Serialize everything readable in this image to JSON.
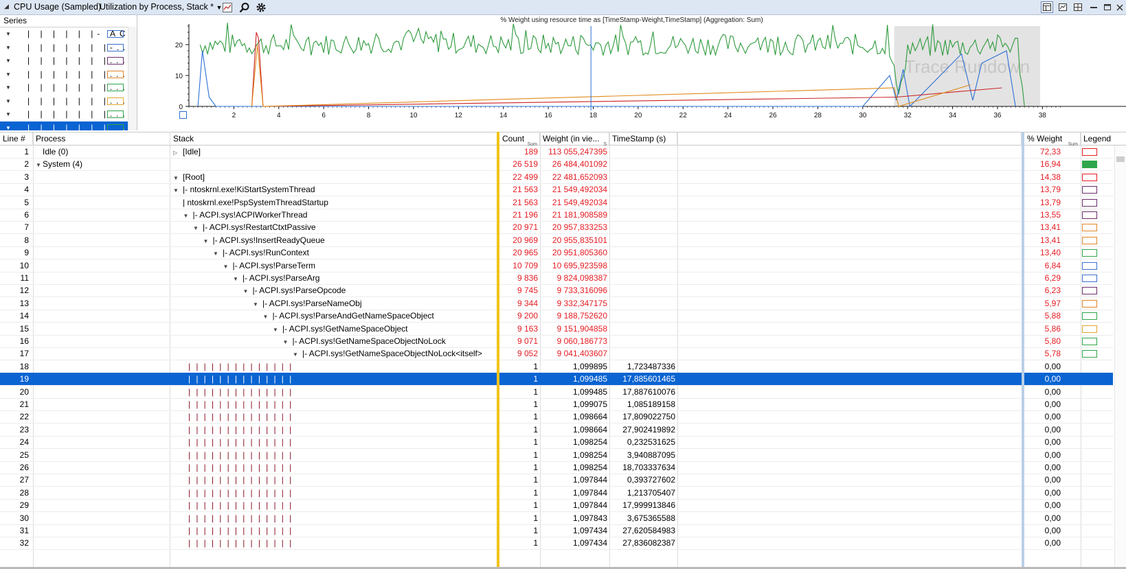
{
  "titlebar": {
    "graph_title": "CPU Usage (Sampled)",
    "preset": "Utilization by Process, Stack *",
    "icons": [
      "collapse-triangle-icon",
      "dropdown-arrow-icon",
      "graph-settings-icon",
      "search-icon",
      "gear-icon",
      "table-icon",
      "chart-icon",
      "split-icon",
      "minimize-icon",
      "restore-icon",
      "close-icon"
    ]
  },
  "series": {
    "header": "Series",
    "rows": [
      {
        "bars": "| | | | | |- AC...",
        "color": "#3a6fcf"
      },
      {
        "bars": "| | | | | | |-...",
        "color": "#3a6fcf"
      },
      {
        "bars": "| | | | | | |...",
        "color": "#6b2d6b"
      },
      {
        "bars": "| | | | | | |...",
        "color": "#e0862a"
      },
      {
        "bars": "| | | | | | |...",
        "color": "#2fa64b"
      },
      {
        "bars": "| | | | | | |...",
        "color": "#e0a52a"
      },
      {
        "bars": "| | | | | | |...",
        "color": "#2fa64b"
      },
      {
        "bars": "| | | | | | |...",
        "color": "#2fa64b",
        "selected": true
      }
    ]
  },
  "chart_data": {
    "type": "line",
    "title": "% Weight using resource time as [TimeStamp-Weight,TimeStamp] (Aggregation: Sum)",
    "xlim": [
      0,
      39
    ],
    "ylim": [
      0,
      26
    ],
    "x_ticks": [
      "2",
      "4",
      "6",
      "8",
      "10",
      "12",
      "14",
      "16",
      "18",
      "20",
      "22",
      "24",
      "26",
      "28",
      "30",
      "32",
      "34",
      "36",
      "38"
    ],
    "y_ticks": [
      "0",
      "10",
      "20"
    ],
    "annotation": "Trace Rundown",
    "annotation_x_range": [
      31.4,
      37.9
    ],
    "cursor_x": 17.9,
    "colors": {
      "green": "#2d9a3c",
      "blue": "#2b6fd6",
      "red": "#cc2222",
      "orange": "#e08a1a",
      "purple": "#6b2d6b"
    },
    "series": [
      {
        "color": "#2d9a3c",
        "x": [
          0.5,
          1.5,
          2.8,
          3.1,
          6,
          10,
          14,
          18,
          22,
          26,
          30,
          31.1,
          31.6,
          32,
          36.9,
          37.2
        ],
        "values": [
          20,
          20,
          20,
          20,
          20,
          21,
          20,
          20,
          20,
          20,
          20,
          20,
          4,
          19,
          20,
          0
        ]
      },
      {
        "color": "#2b6fd6",
        "x": [
          0.4,
          0.6,
          0.9,
          1.2,
          2,
          17.9,
          30,
          31.2,
          31.5,
          31.8,
          32.1,
          34.4,
          34.9,
          35.3,
          36.4,
          36.8
        ],
        "values": [
          0,
          18,
          3,
          0,
          0,
          0,
          0,
          10,
          2,
          12,
          0,
          17,
          2,
          14,
          18,
          0
        ]
      },
      {
        "color": "#cc2222",
        "x": [
          2.8,
          3.0,
          3.1,
          3.3,
          31.5,
          34.6,
          36.2
        ],
        "values": [
          0,
          24,
          22,
          0,
          3,
          5,
          6
        ]
      },
      {
        "color": "#e08a1a",
        "x": [
          2.8,
          3.05,
          3.3,
          31.4,
          31.6,
          34.8
        ],
        "values": [
          0,
          20,
          0,
          6,
          0,
          7
        ]
      }
    ]
  },
  "table": {
    "headers": {
      "line": "Line #",
      "process": "Process",
      "stack": "Stack",
      "count": "Count",
      "count_sub": "Sum",
      "weight": "Weight (in vie...",
      "weight_sub": "S",
      "timestamp": "TimeStamp (s)",
      "pct": "% Weight",
      "pct_sub": "Sum",
      "legend": "Legend"
    },
    "rows": [
      {
        "line": "1",
        "process": "Idle (0)",
        "proc_arrow": "",
        "stack": "[Idle]",
        "stack_arrow": "right",
        "depth": 0,
        "count": "189",
        "weight": "113 055,247395",
        "ts": "",
        "pct": "72,33",
        "legend": "#e51c23",
        "red": true
      },
      {
        "line": "2",
        "process": "System (4)",
        "proc_arrow": "down",
        "stack": "",
        "stack_arrow": "",
        "depth": 0,
        "count": "26 519",
        "weight": "26 484,401092",
        "ts": "",
        "pct": "16,94",
        "legend": "#2fa64b",
        "legend_fill": true,
        "red": true
      },
      {
        "line": "3",
        "process": "",
        "stack": "[Root]",
        "stack_arrow": "down",
        "depth": 0,
        "count": "22 499",
        "weight": "22 481,652093",
        "ts": "",
        "pct": "14,38",
        "legend": "#e51c23",
        "red": true
      },
      {
        "line": "4",
        "process": "",
        "stack": "|- ntoskrnl.exe!KiStartSystemThread",
        "stack_arrow": "down",
        "depth": 0,
        "count": "21 563",
        "weight": "21 549,492034",
        "ts": "",
        "pct": "13,79",
        "legend": "#6b2d6b",
        "red": true
      },
      {
        "line": "5",
        "process": "",
        "stack": "|   ntoskrnl.exe!PspSystemThreadStartup",
        "stack_arrow": "",
        "depth": 0,
        "count": "21 563",
        "weight": "21 549,492034",
        "ts": "",
        "pct": "13,79",
        "legend": "#6b2d6b",
        "red": true
      },
      {
        "line": "6",
        "process": "",
        "stack": "|- ACPI.sys!ACPIWorkerThread",
        "stack_arrow": "down",
        "depth": 1,
        "count": "21 196",
        "weight": "21 181,908589",
        "ts": "",
        "pct": "13,55",
        "legend": "#6b2d6b",
        "red": true
      },
      {
        "line": "7",
        "process": "",
        "stack": "|- ACPI.sys!RestartCtxtPassive",
        "stack_arrow": "down",
        "depth": 2,
        "count": "20 971",
        "weight": "20 957,833253",
        "ts": "",
        "pct": "13,41",
        "legend": "#e0862a",
        "red": true
      },
      {
        "line": "8",
        "process": "",
        "stack": "|- ACPI.sys!InsertReadyQueue",
        "stack_arrow": "down",
        "depth": 3,
        "count": "20 969",
        "weight": "20 955,835101",
        "ts": "",
        "pct": "13,41",
        "legend": "#e0862a",
        "red": true
      },
      {
        "line": "9",
        "process": "",
        "stack": "|- ACPI.sys!RunContext",
        "stack_arrow": "down",
        "depth": 4,
        "count": "20 965",
        "weight": "20 951,805360",
        "ts": "",
        "pct": "13,40",
        "legend": "#2fa64b",
        "red": true
      },
      {
        "line": "10",
        "process": "",
        "stack": "|- ACPI.sys!ParseTerm",
        "stack_arrow": "down",
        "depth": 5,
        "count": "10 709",
        "weight": "10 695,923598",
        "ts": "",
        "pct": "6,84",
        "legend": "#3a6fcf",
        "red": true
      },
      {
        "line": "11",
        "process": "",
        "stack": "|- ACPI.sys!ParseArg",
        "stack_arrow": "down",
        "depth": 6,
        "count": "9 836",
        "weight": "9 824,098387",
        "ts": "",
        "pct": "6,29",
        "legend": "#3a6fcf",
        "red": true
      },
      {
        "line": "12",
        "process": "",
        "stack": "|- ACPI.sys!ParseOpcode",
        "stack_arrow": "down",
        "depth": 7,
        "count": "9 745",
        "weight": "9 733,316096",
        "ts": "",
        "pct": "6,23",
        "legend": "#6b2d6b",
        "red": true
      },
      {
        "line": "13",
        "process": "",
        "stack": "|- ACPI.sys!ParseNameObj",
        "stack_arrow": "down",
        "depth": 8,
        "count": "9 344",
        "weight": "9 332,347175",
        "ts": "",
        "pct": "5,97",
        "legend": "#e0862a",
        "red": true
      },
      {
        "line": "14",
        "process": "",
        "stack": "|- ACPI.sys!ParseAndGetNameSpaceObject",
        "stack_arrow": "down",
        "depth": 9,
        "count": "9 200",
        "weight": "9 188,752620",
        "ts": "",
        "pct": "5,88",
        "legend": "#2fa64b",
        "red": true
      },
      {
        "line": "15",
        "process": "",
        "stack": "|- ACPI.sys!GetNameSpaceObject",
        "stack_arrow": "down",
        "depth": 10,
        "count": "9 163",
        "weight": "9 151,904858",
        "ts": "",
        "pct": "5,86",
        "legend": "#e0a52a",
        "red": true
      },
      {
        "line": "16",
        "process": "",
        "stack": "|- ACPI.sys!GetNameSpaceObjectNoLock",
        "stack_arrow": "down",
        "depth": 11,
        "count": "9 071",
        "weight": "9 060,186773",
        "ts": "",
        "pct": "5,80",
        "legend": "#2fa64b",
        "red": true
      },
      {
        "line": "17",
        "process": "",
        "stack": "|- ACPI.sys!GetNameSpaceObjectNoLock<itself>",
        "stack_arrow": "down",
        "depth": 12,
        "count": "9 052",
        "weight": "9 041,403607",
        "ts": "",
        "pct": "5,78",
        "legend": "#2fa64b",
        "red": true
      },
      {
        "line": "18",
        "process": "",
        "stack": "",
        "bars": true,
        "depth": 13,
        "count": "1",
        "weight": "1,099895",
        "ts": "1,723487336",
        "pct": "0,00",
        "legend": ""
      },
      {
        "line": "19",
        "process": "",
        "stack": "",
        "bars": true,
        "depth": 13,
        "count": "1",
        "weight": "1,099485",
        "ts": "17,885601465",
        "pct": "0,00",
        "legend": "",
        "selected": true
      },
      {
        "line": "20",
        "process": "",
        "stack": "",
        "bars": true,
        "depth": 13,
        "count": "1",
        "weight": "1,099485",
        "ts": "17,887610076",
        "pct": "0,00",
        "legend": ""
      },
      {
        "line": "21",
        "process": "",
        "stack": "",
        "bars": true,
        "depth": 13,
        "count": "1",
        "weight": "1,099075",
        "ts": "1,085189158",
        "pct": "0,00",
        "legend": ""
      },
      {
        "line": "22",
        "process": "",
        "stack": "",
        "bars": true,
        "depth": 13,
        "count": "1",
        "weight": "1,098664",
        "ts": "17,809022750",
        "pct": "0,00",
        "legend": ""
      },
      {
        "line": "23",
        "process": "",
        "stack": "",
        "bars": true,
        "depth": 13,
        "count": "1",
        "weight": "1,098664",
        "ts": "27,902419892",
        "pct": "0,00",
        "legend": ""
      },
      {
        "line": "24",
        "process": "",
        "stack": "",
        "bars": true,
        "depth": 13,
        "count": "1",
        "weight": "1,098254",
        "ts": "0,232531625",
        "pct": "0,00",
        "legend": ""
      },
      {
        "line": "25",
        "process": "",
        "stack": "",
        "bars": true,
        "depth": 13,
        "count": "1",
        "weight": "1,098254",
        "ts": "3,940887095",
        "pct": "0,00",
        "legend": ""
      },
      {
        "line": "26",
        "process": "",
        "stack": "",
        "bars": true,
        "depth": 13,
        "count": "1",
        "weight": "1,098254",
        "ts": "18,703337634",
        "pct": "0,00",
        "legend": ""
      },
      {
        "line": "27",
        "process": "",
        "stack": "",
        "bars": true,
        "depth": 13,
        "count": "1",
        "weight": "1,097844",
        "ts": "0,393727602",
        "pct": "0,00",
        "legend": ""
      },
      {
        "line": "28",
        "process": "",
        "stack": "",
        "bars": true,
        "depth": 13,
        "count": "1",
        "weight": "1,097844",
        "ts": "1,213705407",
        "pct": "0,00",
        "legend": ""
      },
      {
        "line": "29",
        "process": "",
        "stack": "",
        "bars": true,
        "depth": 13,
        "count": "1",
        "weight": "1,097844",
        "ts": "17,999913846",
        "pct": "0,00",
        "legend": ""
      },
      {
        "line": "30",
        "process": "",
        "stack": "",
        "bars": true,
        "depth": 13,
        "count": "1",
        "weight": "1,097843",
        "ts": "3,675365588",
        "pct": "0,00",
        "legend": ""
      },
      {
        "line": "31",
        "process": "",
        "stack": "",
        "bars": true,
        "depth": 13,
        "count": "1",
        "weight": "1,097434",
        "ts": "27,620584983",
        "pct": "0,00",
        "legend": ""
      },
      {
        "line": "32",
        "process": "",
        "stack": "",
        "bars": true,
        "depth": 13,
        "count": "1",
        "weight": "1,097434",
        "ts": "27,836082387",
        "pct": "0,00",
        "legend": ""
      }
    ]
  }
}
